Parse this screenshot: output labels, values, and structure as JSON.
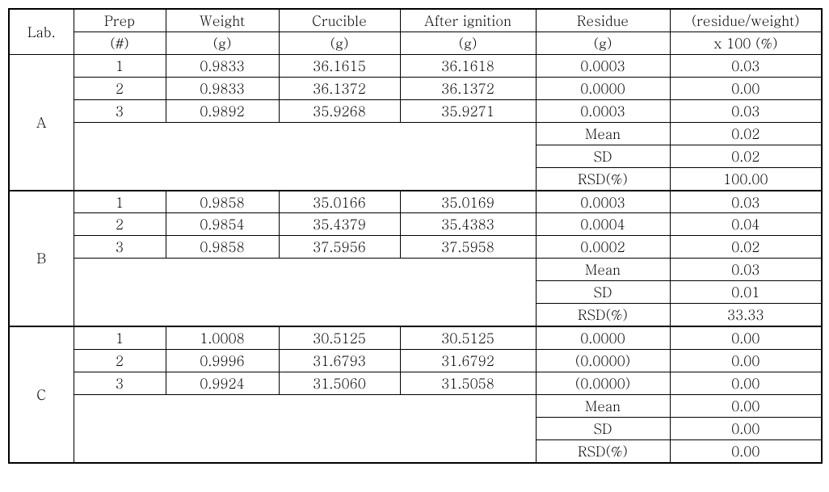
{
  "columns": {
    "lab": {
      "l1": "Lab.",
      "l2": ""
    },
    "prep": {
      "l1": "Prep",
      "l2": "(#)"
    },
    "weight": {
      "l1": "Weight",
      "l2": "(g)"
    },
    "crucible": {
      "l1": "Crucible",
      "l2": "(g)"
    },
    "after": {
      "l1": "After ignition",
      "l2": "(g)"
    },
    "residue": {
      "l1": "Residue",
      "l2": "(g)"
    },
    "pct": {
      "l1": "(residue/weight)",
      "l2": "x 100 (%)"
    }
  },
  "stat_labels": {
    "mean": "Mean",
    "sd": "SD",
    "rsd": "RSD(%)"
  },
  "groups": [
    {
      "lab": "A",
      "rows": [
        {
          "prep": "1",
          "weight": "0.9833",
          "crucible": "36.1615",
          "after": "36.1618",
          "residue": "0.0003",
          "pct": "0.03"
        },
        {
          "prep": "2",
          "weight": "0.9833",
          "crucible": "36.1372",
          "after": "36.1372",
          "residue": "0.0000",
          "pct": "0.00"
        },
        {
          "prep": "3",
          "weight": "0.9892",
          "crucible": "35.9268",
          "after": "35.9271",
          "residue": "0.0003",
          "pct": "0.03"
        }
      ],
      "stats": {
        "mean": "0.02",
        "sd": "0.02",
        "rsd": "100.00"
      }
    },
    {
      "lab": "B",
      "rows": [
        {
          "prep": "1",
          "weight": "0.9858",
          "crucible": "35.0166",
          "after": "35.0169",
          "residue": "0.0003",
          "pct": "0.03"
        },
        {
          "prep": "2",
          "weight": "0.9854",
          "crucible": "35.4379",
          "after": "35.4383",
          "residue": "0.0004",
          "pct": "0.04"
        },
        {
          "prep": "3",
          "weight": "0.9858",
          "crucible": "37.5956",
          "after": "37.5958",
          "residue": "0.0002",
          "pct": "0.02"
        }
      ],
      "stats": {
        "mean": "0.03",
        "sd": "0.01",
        "rsd": "33.33"
      }
    },
    {
      "lab": "C",
      "rows": [
        {
          "prep": "1",
          "weight": "1.0008",
          "crucible": "30.5125",
          "after": "30.5125",
          "residue": "0.0000",
          "pct": "0.00"
        },
        {
          "prep": "2",
          "weight": "0.9996",
          "crucible": "31.6793",
          "after": "31.6792",
          "residue": "(0.0000)",
          "pct": "0.00"
        },
        {
          "prep": "3",
          "weight": "0.9924",
          "crucible": "31.5060",
          "after": "31.5058",
          "residue": "(0.0000)",
          "pct": "0.00"
        }
      ],
      "stats": {
        "mean": "0.00",
        "sd": "0.00",
        "rsd": "0.00"
      }
    }
  ]
}
